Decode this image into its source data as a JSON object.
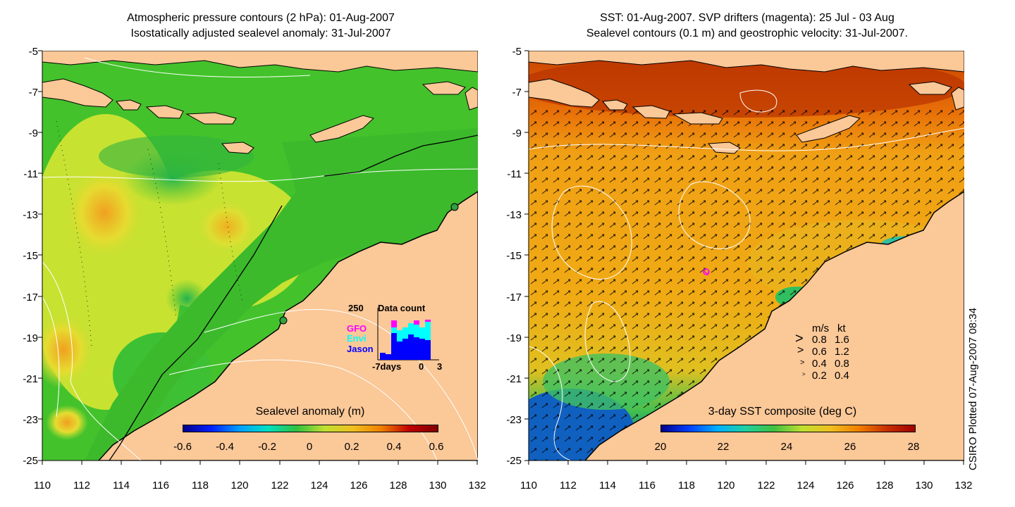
{
  "left_panel": {
    "title_line1": "Atmospheric pressure contours (2 hPa): 01-Aug-2007",
    "title_line2": "Isostatically adjusted sealevel anomaly: 31-Jul-2007",
    "y_labels": [
      "-5",
      "-7",
      "-9",
      "-11",
      "-13",
      "-15",
      "-17",
      "-19",
      "-21",
      "-23",
      "-25"
    ],
    "x_labels": [
      "110",
      "112",
      "114",
      "116",
      "118",
      "120",
      "122",
      "124",
      "126",
      "128",
      "130",
      "132"
    ],
    "colorbar_title": "Sealevel anomaly (m)",
    "colorbar_ticks": [
      "-0.6",
      "-0.4",
      "-0.2",
      "0",
      "0.2",
      "0.4",
      "0.6"
    ],
    "inset": {
      "max_label": "250",
      "title": "Data count",
      "legend": [
        "GFO",
        "Envi",
        "Jason"
      ],
      "legend_colors": [
        "#ff00ff",
        "#00ffff",
        "#0000ff"
      ],
      "x_labels": [
        "-7days",
        "0",
        "3"
      ]
    }
  },
  "right_panel": {
    "title_line1": "SST: 01-Aug-2007. SVP drifters (magenta): 25 Jul - 03 Aug",
    "title_line2": "Sealevel contours (0.1 m) and geostrophic velocity: 31-Jul-2007.",
    "y_labels": [
      "-5",
      "-7",
      "-9",
      "-11",
      "-13",
      "-15",
      "-17",
      "-19",
      "-21",
      "-23",
      "-25"
    ],
    "x_labels": [
      "110",
      "112",
      "114",
      "116",
      "118",
      "120",
      "122",
      "124",
      "126",
      "128",
      "130",
      "132"
    ],
    "colorbar_title": "3-day SST composite (deg C)",
    "colorbar_ticks": [
      "20",
      "22",
      "24",
      "26",
      "28"
    ],
    "legend": {
      "header_ms": "m/s",
      "header_kt": "kt",
      "rows": [
        {
          "ms": "0.8",
          "kt": "1.6"
        },
        {
          "ms": "0.6",
          "kt": "1.2"
        },
        {
          "ms": "0.4",
          "kt": "0.8"
        },
        {
          "ms": "0.2",
          "kt": "0.4"
        }
      ]
    }
  },
  "credit": "CSIRO Plotted 07-Aug-2007 08:34",
  "colors": {
    "land": "#fbc898",
    "ocean_green": "#4cc82e",
    "ocean_yellow": "#c8e632",
    "sst_orange": "#f0a012",
    "sst_red": "#c83c00",
    "drifter": "#ff00ff"
  }
}
